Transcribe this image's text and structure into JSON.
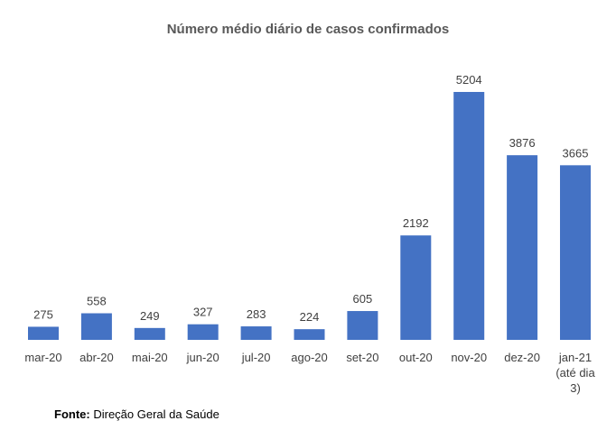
{
  "chart_data": {
    "type": "bar",
    "title": "Número médio diário de casos confirmados",
    "categories": [
      "mar-20",
      "abr-20",
      "mai-20",
      "jun-20",
      "jul-20",
      "ago-20",
      "set-20",
      "out-20",
      "nov-20",
      "dez-20",
      [
        "jan-21",
        "(até dia",
        "3)"
      ]
    ],
    "values": [
      275,
      558,
      249,
      327,
      283,
      224,
      605,
      2192,
      5204,
      3876,
      3665
    ],
    "xlabel": "",
    "ylabel": "",
    "ylim": [
      0,
      5204
    ],
    "grid": false,
    "data_labels": true,
    "bar_color": "#4472C4"
  },
  "source": {
    "label": "Fonte:",
    "text": "Direção Geral da Saúde"
  }
}
